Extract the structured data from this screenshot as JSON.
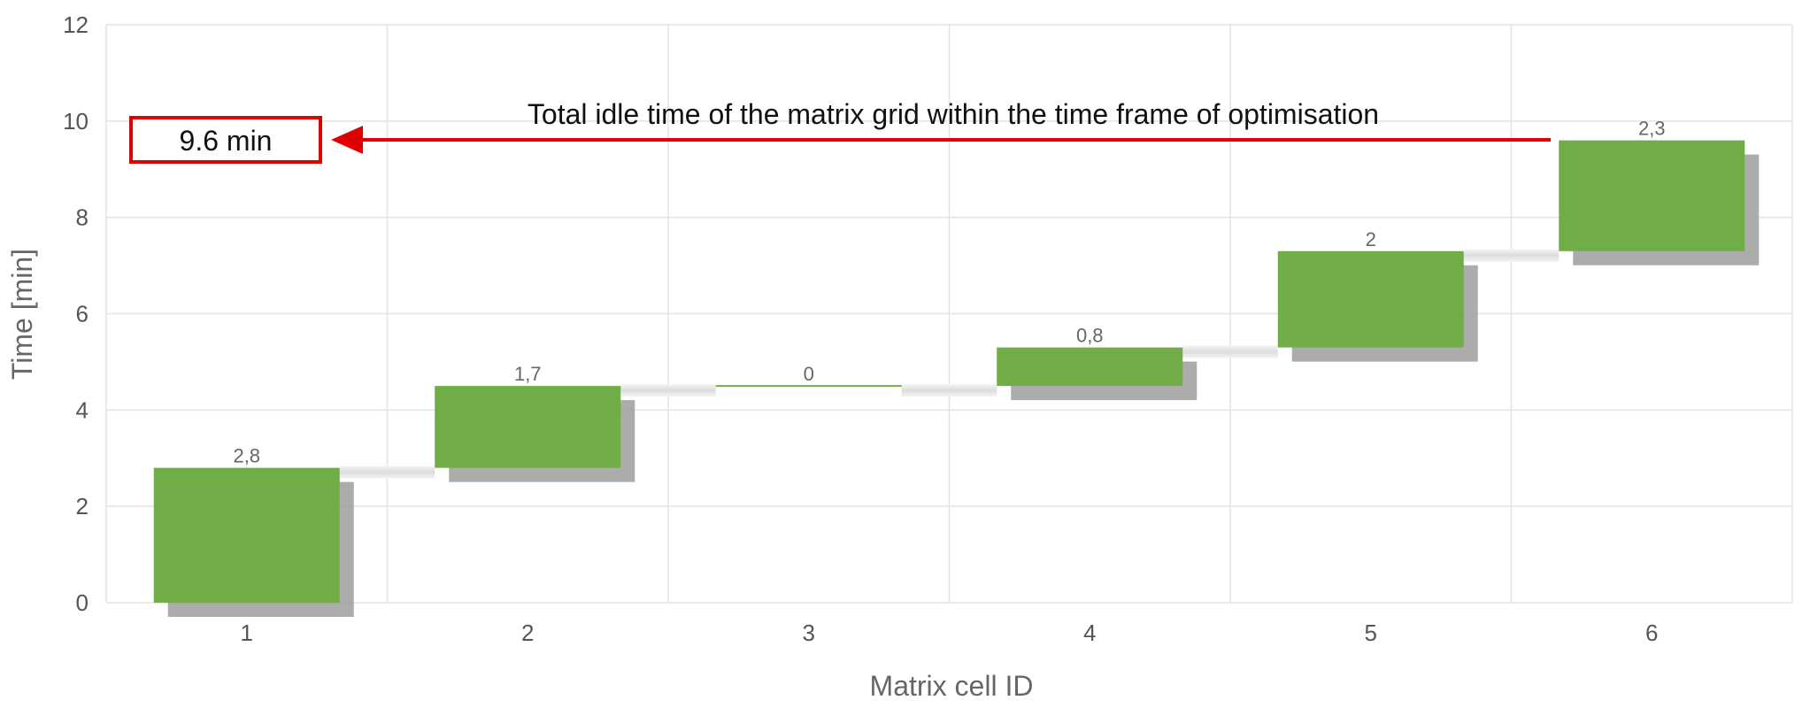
{
  "chart_data": {
    "type": "bar",
    "subtype": "waterfall",
    "categories": [
      "1",
      "2",
      "3",
      "4",
      "5",
      "6"
    ],
    "values": [
      2.8,
      1.7,
      0,
      0.8,
      2,
      2.3
    ],
    "value_labels": [
      "2,8",
      "1,7",
      "0",
      "0,8",
      "2",
      "2,3"
    ],
    "title": "",
    "xlabel": "Matrix cell ID",
    "ylabel": "Time [min]",
    "ylim": [
      0,
      12
    ],
    "yticks": [
      0,
      2,
      4,
      6,
      8,
      10,
      12
    ],
    "grid": true,
    "bar_color": "#70ad47",
    "shadow_color": "#9e9e9e",
    "annotation": {
      "text": "Total idle time of the matrix grid within the time frame of optimisation",
      "total_label": "9.6 min",
      "total_value": 9.6,
      "arrow_color": "#e00000"
    }
  }
}
